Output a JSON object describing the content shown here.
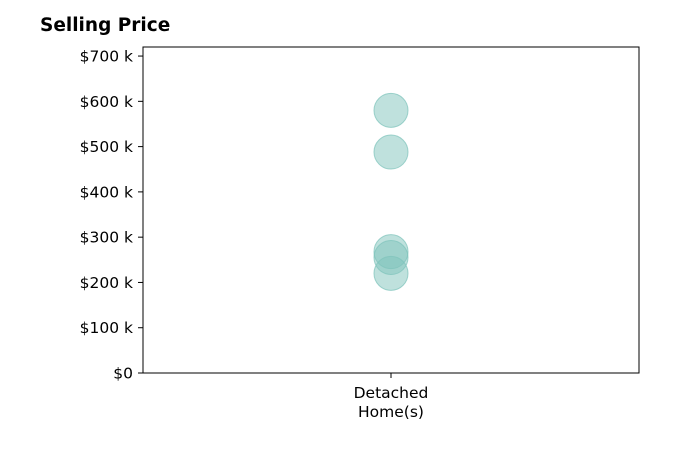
{
  "chart_data": {
    "type": "scatter",
    "title": "Selling Price",
    "xlabel": "",
    "ylabel": "",
    "categories": [
      "Detached\nHome(s)"
    ],
    "category_lines": [
      [
        "Detached",
        "Home(s)"
      ]
    ],
    "y_ticks": [
      {
        "value": 0,
        "label": "$0"
      },
      {
        "value": 100,
        "label": "$100 k"
      },
      {
        "value": 200,
        "label": "$200 k"
      },
      {
        "value": 300,
        "label": "$300 k"
      },
      {
        "value": 400,
        "label": "$400 k"
      },
      {
        "value": 500,
        "label": "$500 k"
      },
      {
        "value": 600,
        "label": "$600 k"
      },
      {
        "value": 700,
        "label": "$700 k"
      }
    ],
    "ylim": [
      0,
      720
    ],
    "y_unit": "thousands of dollars",
    "series": [
      {
        "category": "Detached\nHome(s)",
        "values": [
          580,
          488,
          268,
          255,
          220
        ]
      }
    ],
    "marker_color": "#80c4bc",
    "marker_opacity": 0.5,
    "grid": false,
    "legend": "none"
  }
}
